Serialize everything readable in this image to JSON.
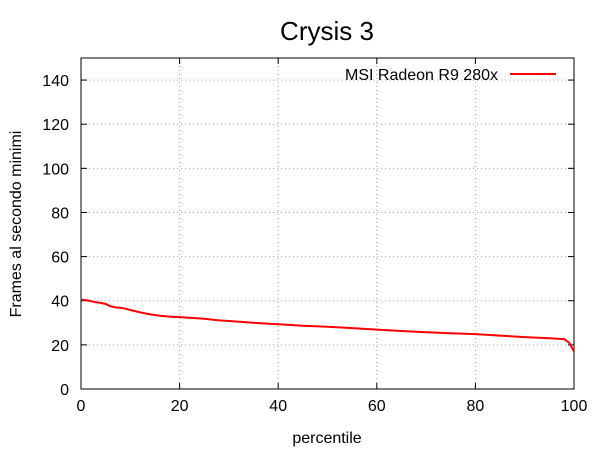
{
  "chart_data": {
    "type": "line",
    "title": "Crysis 3",
    "xlabel": "percentile",
    "ylabel": "Frames al secondo minimi",
    "xlim": [
      0,
      100
    ],
    "ylim": [
      0,
      150
    ],
    "xticks": [
      0,
      20,
      40,
      60,
      80,
      100
    ],
    "yticks": [
      0,
      20,
      40,
      60,
      80,
      100,
      120,
      140
    ],
    "xtick_labels": [
      "0",
      "20",
      "40",
      "60",
      "80",
      "100"
    ],
    "ytick_labels": [
      "0",
      "20",
      "40",
      "60",
      "80",
      "100",
      "120",
      "140"
    ],
    "grid": true,
    "legend_position": "top-right",
    "series": [
      {
        "name": "MSI Radeon R9 280x",
        "color": "#ff0000",
        "x": [
          0,
          1,
          2,
          3,
          4,
          5,
          6,
          7,
          8,
          9,
          10,
          12,
          14,
          16,
          18,
          20,
          22,
          25,
          28,
          30,
          35,
          40,
          45,
          50,
          55,
          60,
          65,
          70,
          75,
          80,
          85,
          90,
          95,
          98,
          99,
          100
        ],
        "y": [
          40.5,
          40.3,
          39.8,
          39.3,
          39.0,
          38.5,
          37.5,
          37.0,
          36.8,
          36.4,
          35.8,
          34.7,
          33.8,
          33.2,
          32.8,
          32.6,
          32.3,
          31.8,
          31.1,
          30.8,
          30.0,
          29.3,
          28.7,
          28.2,
          27.6,
          26.9,
          26.3,
          25.7,
          25.3,
          24.9,
          24.2,
          23.5,
          23.0,
          22.6,
          21.0,
          17.0
        ]
      }
    ]
  }
}
